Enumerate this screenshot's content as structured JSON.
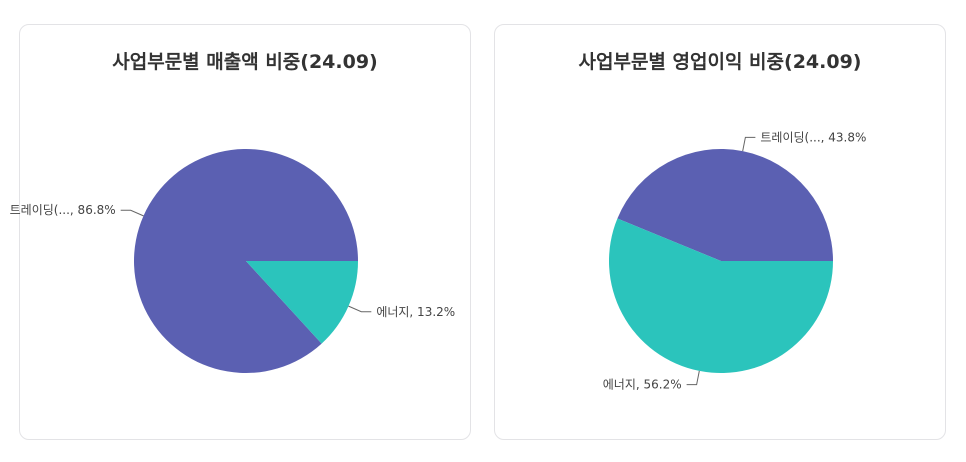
{
  "chart_data": [
    {
      "type": "pie",
      "title": "사업부문별 매출액 비중(24.09)",
      "slices": [
        {
          "label": "트레이딩(..., 86.8%",
          "value": 86.8,
          "color": "#5b60b2"
        },
        {
          "label": "에너지, 13.2%",
          "value": 13.2,
          "color": "#2bc4bc"
        }
      ]
    },
    {
      "type": "pie",
      "title": "사업부문별 영업이익 비중(24.09)",
      "slices": [
        {
          "label": "트레이딩(..., 43.8%",
          "value": 43.8,
          "color": "#5b60b2"
        },
        {
          "label": "에너지, 56.2%",
          "value": 56.2,
          "color": "#2bc4bc"
        }
      ]
    }
  ]
}
